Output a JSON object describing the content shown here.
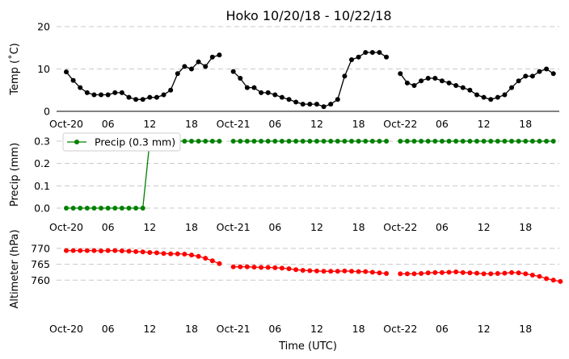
{
  "chart_data": {
    "title": "Hoko 10/20/18 - 10/22/18",
    "xlabel": "Time (UTC)",
    "x_tick_labels": [
      "Oct-20",
      "06",
      "12",
      "18",
      "Oct-21",
      "06",
      "12",
      "18",
      "Oct-22",
      "06",
      "12",
      "18"
    ],
    "x_hours_range": [
      0,
      70.5
    ],
    "panels": [
      {
        "type": "line",
        "ylabel": "Temp (˚C)",
        "ylim": [
          0,
          20
        ],
        "yticks": [
          "0",
          "10",
          "20"
        ],
        "grid": true,
        "legend": null,
        "series": [
          {
            "color": "#000000",
            "values": [
              9.3,
              7.3,
              5.6,
              4.4,
              3.9,
              3.9,
              3.9,
              4.4,
              4.4,
              3.3,
              2.8,
              2.8,
              3.3,
              3.3,
              3.9,
              5.0,
              8.9,
              10.6,
              10.0,
              11.7,
              10.6,
              12.8,
              13.3,
              null,
              9.4,
              7.8,
              5.6,
              5.6,
              4.4,
              4.4,
              3.9,
              3.3,
              2.8,
              2.2,
              1.7,
              1.7,
              1.7,
              1.1,
              1.7,
              2.8,
              8.3,
              12.2,
              12.8,
              13.9,
              13.9,
              13.9,
              12.8,
              null,
              8.9,
              6.7,
              6.1,
              7.2,
              7.8,
              7.8,
              7.2,
              6.7,
              6.1,
              5.6,
              5.0,
              3.9,
              3.3,
              2.8,
              3.3,
              3.9,
              5.6,
              7.2,
              8.3,
              8.3,
              9.4,
              10.0,
              8.9
            ]
          }
        ]
      },
      {
        "type": "line",
        "ylabel": "Precip (mm)",
        "ylim": [
          0,
          0.3
        ],
        "yticks": [
          "0.0",
          "0.1",
          "0.2",
          "0.3"
        ],
        "grid": true,
        "legend": {
          "label": "Precip (0.3 mm)",
          "placement": "upper-left"
        },
        "series": [
          {
            "name": "Precip (0.3 mm)",
            "color": "#008000",
            "values": [
              0,
              0,
              0,
              0,
              0,
              0,
              0,
              0,
              0,
              0,
              0,
              0,
              0.3,
              0.3,
              0.3,
              0.3,
              0.3,
              0.3,
              0.3,
              0.3,
              0.3,
              0.3,
              0.3,
              null,
              0.3,
              0.3,
              0.3,
              0.3,
              0.3,
              0.3,
              0.3,
              0.3,
              0.3,
              0.3,
              0.3,
              0.3,
              0.3,
              0.3,
              0.3,
              0.3,
              0.3,
              0.3,
              0.3,
              0.3,
              0.3,
              0.3,
              0.3,
              null,
              0.3,
              0.3,
              0.3,
              0.3,
              0.3,
              0.3,
              0.3,
              0.3,
              0.3,
              0.3,
              0.3,
              0.3,
              0.3,
              0.3,
              0.3,
              0.3,
              0.3,
              0.3,
              0.3,
              0.3,
              0.3,
              0.3,
              0.3
            ]
          }
        ]
      },
      {
        "type": "line",
        "ylabel": "Altimeter (hPa)",
        "ylim": [
          755,
          772
        ],
        "yticks": [
          "760",
          "765",
          "770"
        ],
        "grid": true,
        "legend": null,
        "series": [
          {
            "color": "#ff0000",
            "values": [
              769.3,
              769.3,
              769.3,
              769.3,
              769.3,
              769.2,
              769.3,
              769.3,
              769.2,
              769.1,
              769.0,
              768.9,
              768.7,
              768.6,
              768.4,
              768.3,
              768.3,
              768.2,
              767.9,
              767.5,
              766.9,
              766.1,
              765.2,
              null,
              764.2,
              764.2,
              764.2,
              764.1,
              764.0,
              764.0,
              763.9,
              763.8,
              763.6,
              763.3,
              763.1,
              763.0,
              762.9,
              762.8,
              762.8,
              762.8,
              762.9,
              762.8,
              762.7,
              762.7,
              762.5,
              762.3,
              762.1,
              null,
              762.0,
              762.0,
              762.0,
              762.1,
              762.3,
              762.4,
              762.4,
              762.5,
              762.6,
              762.4,
              762.3,
              762.2,
              762.0,
              762.0,
              762.1,
              762.2,
              762.4,
              762.3,
              762.0,
              761.6,
              761.2,
              760.5,
              760.0,
              759.6
            ]
          }
        ]
      }
    ]
  }
}
